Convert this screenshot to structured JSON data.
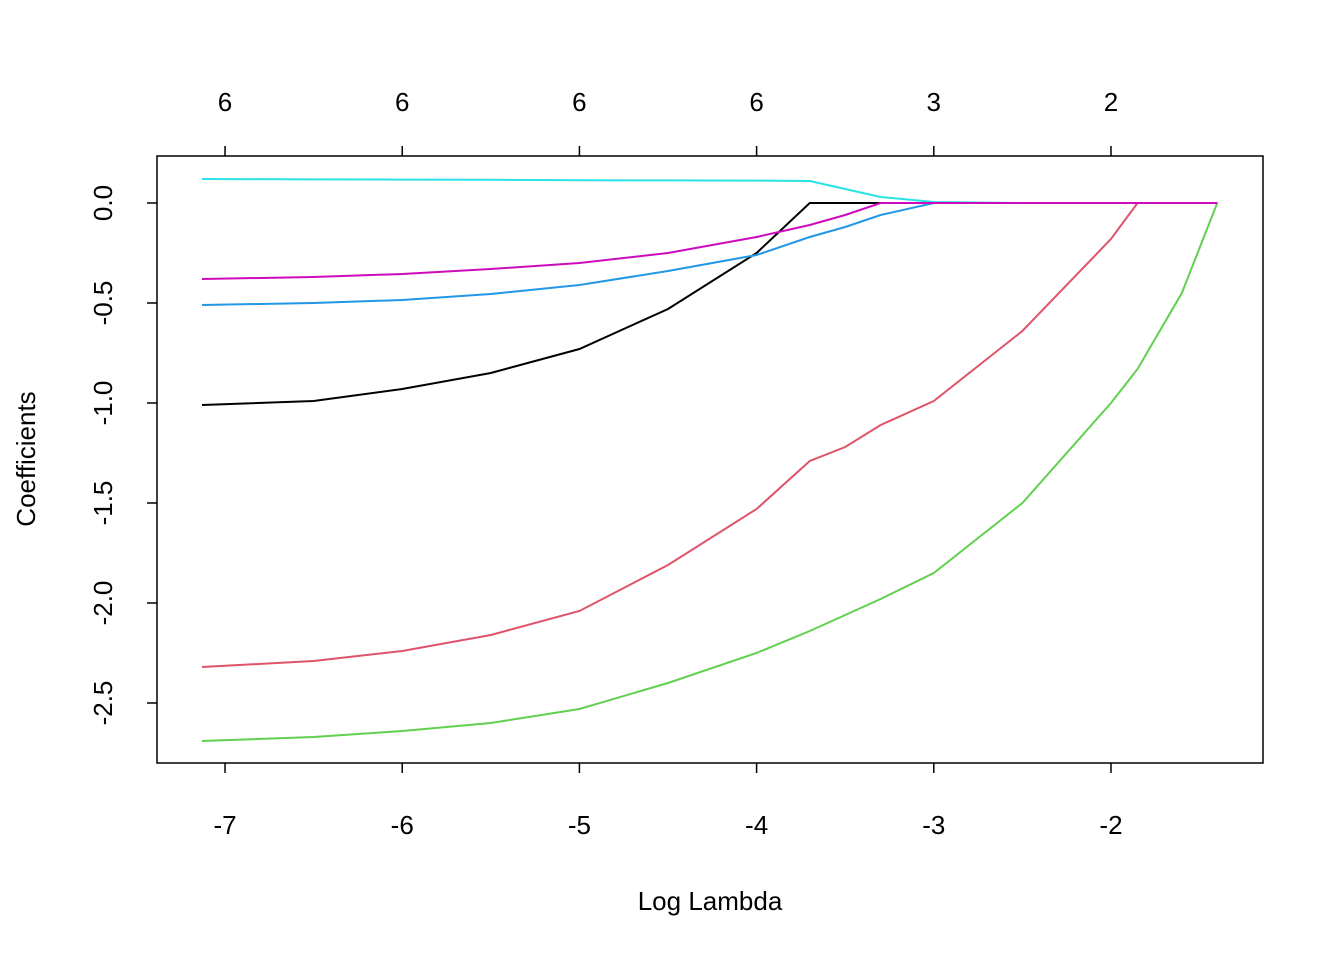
{
  "chart_data": {
    "type": "line",
    "xlabel": "Log Lambda",
    "ylabel": "Coefficients",
    "x": [
      -7.13,
      -6.5,
      -6,
      -5.5,
      -5,
      -4.5,
      -4,
      -3.7,
      -3.5,
      -3.3,
      -3,
      -2.5,
      -2,
      -1.85,
      -1.6,
      -1.4
    ],
    "series": [
      {
        "color": "#000000",
        "values": [
          -1.01,
          -0.99,
          -0.93,
          -0.85,
          -0.73,
          -0.53,
          -0.25,
          0,
          0,
          0,
          0,
          null,
          null,
          null,
          null,
          null
        ]
      },
      {
        "color": "#DF536B",
        "values": [
          -2.32,
          -2.29,
          -2.24,
          -2.16,
          -2.04,
          -1.81,
          -1.53,
          -1.29,
          -1.22,
          -1.11,
          -0.99,
          -0.64,
          -0.18,
          0,
          0,
          0
        ]
      },
      {
        "color": "#61D04F",
        "values": [
          -2.69,
          -2.67,
          -2.64,
          -2.6,
          -2.53,
          -2.4,
          -2.25,
          -2.14,
          -2.06,
          -1.98,
          -1.85,
          -1.5,
          -1.0,
          -0.83,
          -0.45,
          0
        ]
      },
      {
        "color": "#2297E6",
        "values": [
          -0.51,
          -0.5,
          -0.485,
          -0.455,
          -0.41,
          -0.34,
          -0.26,
          -0.17,
          -0.12,
          -0.06,
          0,
          0,
          0,
          0,
          0,
          0
        ]
      },
      {
        "color": "#28E2E5",
        "values": [
          0.12,
          0.118,
          0.117,
          0.116,
          0.114,
          0.113,
          0.112,
          0.11,
          0.07,
          0.03,
          0.005,
          0,
          0,
          0,
          0,
          0
        ]
      },
      {
        "color": "#CD0BBC",
        "values": [
          -0.38,
          -0.37,
          -0.355,
          -0.33,
          -0.3,
          -0.25,
          -0.17,
          -0.11,
          -0.06,
          0,
          0,
          0,
          0,
          0,
          0,
          0
        ]
      }
    ],
    "xlim": [
      -7.384,
      -1.142
    ],
    "xticks": [
      -7,
      -6,
      -5,
      -4,
      -3,
      -2
    ],
    "top_xticks": [
      {
        "value": -7,
        "label": "6"
      },
      {
        "value": -6,
        "label": "6"
      },
      {
        "value": -5,
        "label": "6"
      },
      {
        "value": -4,
        "label": "6"
      },
      {
        "value": -3,
        "label": "3"
      },
      {
        "value": -2,
        "label": "2"
      }
    ],
    "ylim": [
      -2.8,
      0.235
    ],
    "yticks": [
      {
        "value": 0,
        "label": "0.0"
      },
      -0.5,
      {
        "value": -1,
        "label": "-1.0"
      },
      -1.5,
      {
        "value": -2,
        "label": "-2.0"
      },
      -2.5
    ]
  }
}
